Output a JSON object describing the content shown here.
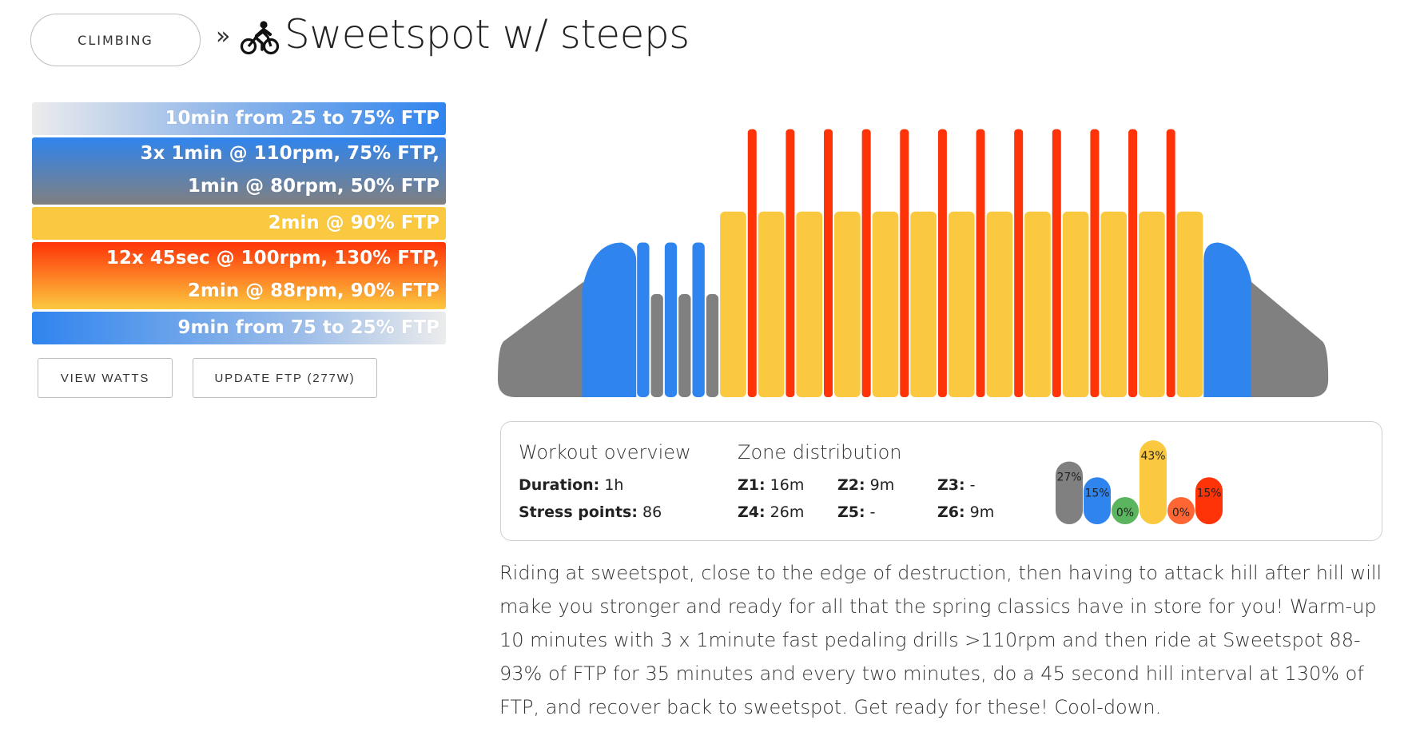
{
  "header": {
    "category_label": "CLIMBING",
    "separator": "»",
    "bike_icon": "bike-rider-icon",
    "title": "Sweetspot w/ steeps"
  },
  "steps": [
    {
      "lines": [
        "10min from 25 to 75% FTP"
      ]
    },
    {
      "lines": [
        "3x 1min @ 110rpm, 75% FTP,",
        "1min @ 80rpm, 50% FTP"
      ]
    },
    {
      "lines": [
        "2min @ 90% FTP"
      ]
    },
    {
      "lines": [
        "12x 45sec @ 100rpm, 130% FTP,",
        "2min @ 88rpm, 90% FTP"
      ]
    },
    {
      "lines": [
        "9min from 75 to 25% FTP"
      ]
    }
  ],
  "buttons": {
    "view_watts": "VIEW WATTS",
    "update_ftp": "UPDATE FTP (277W)"
  },
  "colors": {
    "z1": "#808080",
    "z2": "#2f84ee",
    "z3": "#5ab55e",
    "z4": "#fbc93f",
    "z5": "#ff6633",
    "z6": "#ff3308"
  },
  "chart_data": {
    "type": "bar",
    "description_of_axis": "",
    "segments": [
      {
        "kind": "ramp",
        "zone": "mixed",
        "duration_min": 10,
        "from_pct": 25,
        "to_pct": 75
      },
      {
        "kind": "repeat",
        "count": 3,
        "on": {
          "duration_min": 1,
          "pct": 75,
          "zone": "z2"
        },
        "off": {
          "duration_min": 1,
          "pct": 50,
          "zone": "z1"
        }
      },
      {
        "kind": "steady",
        "duration_min": 2,
        "pct": 90,
        "zone": "z4"
      },
      {
        "kind": "repeat",
        "count": 12,
        "on": {
          "duration_min": 0.75,
          "pct": 130,
          "zone": "z6"
        },
        "off": {
          "duration_min": 2,
          "pct": 90,
          "zone": "z4"
        }
      },
      {
        "kind": "ramp",
        "zone": "mixed",
        "duration_min": 9,
        "from_pct": 75,
        "to_pct": 25
      }
    ]
  },
  "overview": {
    "title": "Workout overview",
    "duration_label": "Duration:",
    "duration_value": "1h",
    "stress_label": "Stress points:",
    "stress_value": "86"
  },
  "zones": {
    "title": "Zone distribution",
    "items": [
      {
        "label": "Z1:",
        "value": "16m"
      },
      {
        "label": "Z2:",
        "value": "9m"
      },
      {
        "label": "Z3:",
        "value": "-"
      },
      {
        "label": "Z4:",
        "value": "26m"
      },
      {
        "label": "Z5:",
        "value": "-"
      },
      {
        "label": "Z6:",
        "value": "9m"
      }
    ],
    "distribution": [
      {
        "zone": "z1",
        "pct": 27,
        "label": "27%"
      },
      {
        "zone": "z2",
        "pct": 15,
        "label": "15%"
      },
      {
        "zone": "z3",
        "pct": 0,
        "label": "0%"
      },
      {
        "zone": "z4",
        "pct": 43,
        "label": "43%"
      },
      {
        "zone": "z5",
        "pct": 0,
        "label": "0%"
      },
      {
        "zone": "z6",
        "pct": 15,
        "label": "15%"
      }
    ]
  },
  "description": "Riding at sweetspot, close to the edge of destruction, then having to attack hill after hill will make you stronger and ready for all that the spring classics have in store for you! Warm-up 10 minutes with 3 x 1minute fast pedaling drills >110rpm and then ride at Sweetspot 88-93% of FTP for 35 minutes and every two minutes, do a 45 second hill interval at 130% of FTP, and recover back to sweetspot. Get ready for these! Cool-down."
}
